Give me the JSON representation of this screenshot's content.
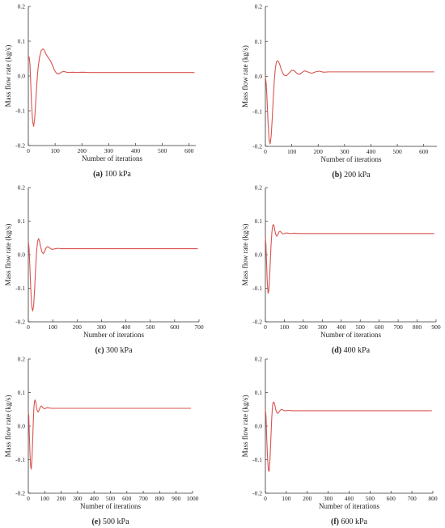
{
  "figure": {
    "line_color": "#d9534f",
    "axis_color": "#333333"
  },
  "chart_data": [
    {
      "type": "line",
      "caption_letter": "(a)",
      "caption_text": " 100 kPa",
      "xlabel": "Number of iterations",
      "ylabel": "Mass flow rate  (kg/s)",
      "xlim": [
        0,
        625
      ],
      "ylim": [
        -0.2,
        0.2
      ],
      "xticks": [
        0,
        100,
        200,
        300,
        400,
        500,
        600
      ],
      "yticks": [
        -0.2,
        -0.1,
        0.0,
        0.1,
        0.2
      ],
      "ytick_labels": [
        "-0.2",
        "-0.1",
        "0.0",
        "0.1",
        "0.2"
      ],
      "series": [
        {
          "x": [
            0,
            3,
            6,
            9,
            12,
            16,
            20,
            24,
            28,
            32,
            36,
            42,
            48,
            54,
            58,
            62,
            66,
            70,
            75,
            80,
            86,
            92,
            98,
            104,
            110,
            118,
            126,
            134,
            142,
            150,
            165,
            180,
            200,
            230,
            300,
            400,
            500,
            620
          ],
          "y": [
            0.05,
            0.055,
            0.035,
            -0.02,
            -0.08,
            -0.13,
            -0.145,
            -0.12,
            -0.07,
            -0.02,
            0.02,
            0.055,
            0.073,
            0.078,
            0.076,
            0.07,
            0.063,
            0.058,
            0.052,
            0.047,
            0.038,
            0.027,
            0.016,
            0.009,
            0.006,
            0.008,
            0.012,
            0.013,
            0.011,
            0.01,
            0.011,
            0.01,
            0.011,
            0.01,
            0.01,
            0.01,
            0.01,
            0.01
          ]
        }
      ]
    },
    {
      "type": "line",
      "caption_letter": "(b)",
      "caption_text": " 200 kPa",
      "xlabel": "Number of iterations",
      "ylabel": "Mass flow rate  (kg/s)",
      "xlim": [
        0,
        650
      ],
      "ylim": [
        -0.2,
        0.2
      ],
      "xticks": [
        0,
        100,
        200,
        300,
        400,
        500,
        600
      ],
      "yticks": [
        -0.2,
        -0.1,
        0.0,
        0.1,
        0.2
      ],
      "ytick_labels": [
        "-0.2",
        "-0.1",
        "0.0",
        "0.1",
        "0.2"
      ],
      "series": [
        {
          "x": [
            0,
            3,
            6,
            10,
            14,
            18,
            22,
            26,
            30,
            34,
            38,
            42,
            46,
            50,
            55,
            60,
            66,
            72,
            80,
            90,
            100,
            110,
            120,
            130,
            140,
            150,
            160,
            175,
            190,
            205,
            220,
            240,
            270,
            320,
            400,
            500,
            640
          ],
          "y": [
            0.0,
            -0.02,
            -0.06,
            -0.13,
            -0.18,
            -0.193,
            -0.17,
            -0.12,
            -0.06,
            -0.01,
            0.025,
            0.042,
            0.045,
            0.042,
            0.033,
            0.02,
            0.009,
            0.003,
            0.002,
            0.01,
            0.018,
            0.016,
            0.008,
            0.006,
            0.012,
            0.016,
            0.013,
            0.009,
            0.013,
            0.015,
            0.012,
            0.013,
            0.013,
            0.013,
            0.013,
            0.013,
            0.013
          ]
        }
      ]
    },
    {
      "type": "line",
      "caption_letter": "(c)",
      "caption_text": " 300 kPa",
      "xlabel": "Number of iterations",
      "ylabel": "Mass flow rate  (kg/s)",
      "xlim": [
        0,
        700
      ],
      "ylim": [
        -0.2,
        0.2
      ],
      "xticks": [
        0,
        100,
        200,
        300,
        400,
        500,
        600,
        700
      ],
      "yticks": [
        -0.2,
        -0.1,
        0.0,
        0.1,
        0.2
      ],
      "ytick_labels": [
        "-0.2",
        "-0.1",
        "0.0",
        "0.1",
        "0.2"
      ],
      "series": [
        {
          "x": [
            0,
            3,
            6,
            10,
            14,
            18,
            22,
            26,
            30,
            34,
            38,
            42,
            46,
            50,
            56,
            62,
            68,
            74,
            80,
            88,
            96,
            106,
            120,
            140,
            170,
            220,
            300,
            400,
            500,
            600,
            695
          ],
          "y": [
            0.04,
            0.02,
            -0.03,
            -0.1,
            -0.155,
            -0.168,
            -0.15,
            -0.1,
            -0.04,
            0.01,
            0.04,
            0.048,
            0.04,
            0.025,
            0.008,
            0.003,
            0.012,
            0.022,
            0.024,
            0.02,
            0.016,
            0.017,
            0.019,
            0.018,
            0.018,
            0.018,
            0.018,
            0.018,
            0.018,
            0.018,
            0.018
          ]
        }
      ]
    },
    {
      "type": "line",
      "caption_letter": "(d)",
      "caption_text": " 400 kPa",
      "xlabel": "Number of iterations",
      "ylabel": "Mass flow rate  (kg/s)",
      "xlim": [
        0,
        900
      ],
      "ylim": [
        -0.2,
        0.2
      ],
      "xticks": [
        0,
        100,
        200,
        300,
        400,
        500,
        600,
        700,
        800,
        900
      ],
      "yticks": [
        -0.2,
        -0.1,
        0.0,
        0.1,
        0.2
      ],
      "ytick_labels": [
        "-0.2",
        "-0.1",
        "0.0",
        "0.1",
        "0.2"
      ],
      "series": [
        {
          "x": [
            0,
            3,
            6,
            10,
            14,
            18,
            22,
            26,
            30,
            34,
            38,
            42,
            46,
            50,
            55,
            60,
            66,
            72,
            78,
            84,
            92,
            100,
            110,
            120,
            135,
            150,
            180,
            250,
            400,
            600,
            800,
            890
          ],
          "y": [
            0.05,
            0.03,
            -0.02,
            -0.08,
            -0.115,
            -0.108,
            -0.07,
            -0.02,
            0.03,
            0.065,
            0.085,
            0.09,
            0.085,
            0.072,
            0.06,
            0.055,
            0.06,
            0.068,
            0.07,
            0.066,
            0.062,
            0.063,
            0.065,
            0.064,
            0.063,
            0.064,
            0.063,
            0.063,
            0.063,
            0.063,
            0.063,
            0.063
          ]
        }
      ]
    },
    {
      "type": "line",
      "caption_letter": "(e)",
      "caption_text": " 500 kPa",
      "xlabel": "Number of iterations",
      "ylabel": "Mass flow rate  (kg/s)",
      "xlim": [
        0,
        1000
      ],
      "ylim": [
        -0.2,
        0.2
      ],
      "xticks": [
        0,
        100,
        200,
        300,
        400,
        500,
        600,
        700,
        800,
        900,
        1000
      ],
      "yticks": [
        -0.2,
        -0.1,
        0.0,
        0.1,
        0.2
      ],
      "ytick_labels": [
        "-0.2",
        "-0.1",
        "0.0",
        "0.1",
        "0.2"
      ],
      "series": [
        {
          "x": [
            0,
            3,
            6,
            10,
            14,
            18,
            22,
            26,
            30,
            34,
            38,
            42,
            46,
            50,
            55,
            60,
            66,
            72,
            78,
            84,
            90,
            98,
            106,
            115,
            125,
            140,
            160,
            200,
            300,
            500,
            700,
            990
          ],
          "y": [
            0.04,
            0.03,
            -0.02,
            -0.08,
            -0.12,
            -0.128,
            -0.1,
            -0.05,
            0.01,
            0.055,
            0.075,
            0.078,
            0.07,
            0.055,
            0.045,
            0.042,
            0.048,
            0.056,
            0.06,
            0.058,
            0.054,
            0.052,
            0.053,
            0.055,
            0.054,
            0.053,
            0.053,
            0.053,
            0.053,
            0.053,
            0.053,
            0.053
          ]
        }
      ]
    },
    {
      "type": "line",
      "caption_letter": "(f)",
      "caption_text": " 600 kPa",
      "xlabel": "Number of iterations",
      "ylabel": "Mass flow rate  (kg/s)",
      "xlim": [
        0,
        800
      ],
      "ylim": [
        -0.2,
        0.2
      ],
      "xticks": [
        0,
        100,
        200,
        300,
        400,
        500,
        600,
        700,
        800
      ],
      "yticks": [
        -0.2,
        -0.1,
        0.0,
        0.1,
        0.2
      ],
      "ytick_labels": [
        "-0.2",
        "-0.1",
        "0.0",
        "0.1",
        "0.2"
      ],
      "series": [
        {
          "x": [
            0,
            3,
            6,
            10,
            14,
            18,
            22,
            26,
            30,
            34,
            38,
            42,
            46,
            50,
            55,
            60,
            66,
            72,
            78,
            84,
            92,
            100,
            110,
            125,
            140,
            170,
            220,
            300,
            450,
            600,
            795
          ],
          "y": [
            0.05,
            0.03,
            -0.03,
            -0.09,
            -0.13,
            -0.135,
            -0.1,
            -0.04,
            0.02,
            0.06,
            0.072,
            0.07,
            0.06,
            0.048,
            0.04,
            0.038,
            0.043,
            0.048,
            0.05,
            0.048,
            0.046,
            0.046,
            0.047,
            0.046,
            0.046,
            0.046,
            0.046,
            0.046,
            0.046,
            0.046,
            0.046
          ]
        }
      ]
    }
  ]
}
